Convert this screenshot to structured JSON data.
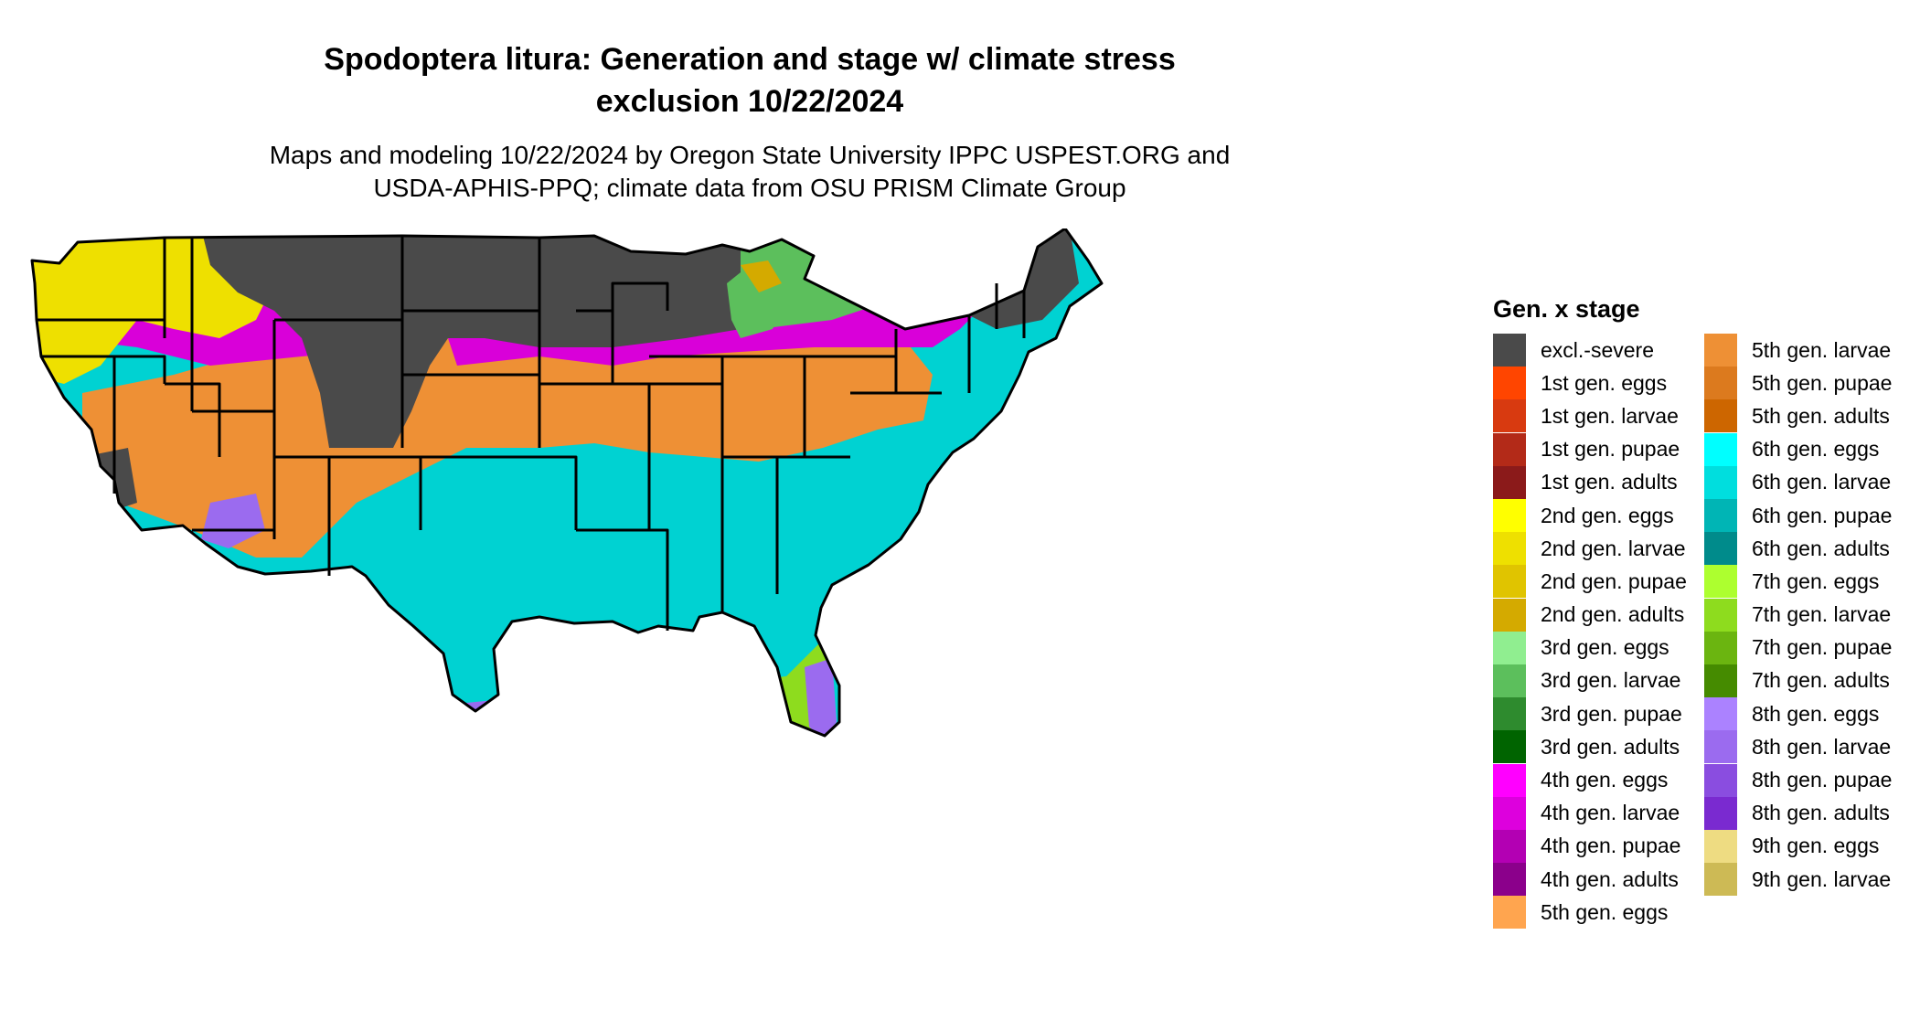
{
  "title_line1": "Spodoptera litura: Generation and stage w/ climate stress",
  "title_line2": "exclusion 10/22/2024",
  "subtitle_line1": "Maps and modeling 10/22/2024 by Oregon State University IPPC USPEST.ORG and",
  "subtitle_line2": "USDA-APHIS-PPQ; climate data from OSU PRISM Climate Group",
  "legend": {
    "title": "Gen. x stage",
    "items": [
      {
        "label": "excl.-severe",
        "color": "#4a4a4a"
      },
      {
        "label": "1st gen. eggs",
        "color": "#ff4500"
      },
      {
        "label": "1st gen. larvae",
        "color": "#d83a10"
      },
      {
        "label": "1st gen. pupae",
        "color": "#b32a18"
      },
      {
        "label": "1st gen. adults",
        "color": "#8b1a1a"
      },
      {
        "label": "2nd gen. eggs",
        "color": "#ffff00"
      },
      {
        "label": "2nd gen. larvae",
        "color": "#eee000"
      },
      {
        "label": "2nd gen. pupae",
        "color": "#e0c400"
      },
      {
        "label": "2nd gen. adults",
        "color": "#d4aa00"
      },
      {
        "label": "3rd gen. eggs",
        "color": "#90ee90"
      },
      {
        "label": "3rd gen. larvae",
        "color": "#5cbf5c"
      },
      {
        "label": "3rd gen. pupae",
        "color": "#2e8b2e"
      },
      {
        "label": "3rd gen. adults",
        "color": "#006400"
      },
      {
        "label": "4th gen. eggs",
        "color": "#ff00ff"
      },
      {
        "label": "4th gen. larvae",
        "color": "#dd00dd"
      },
      {
        "label": "4th gen. pupae",
        "color": "#b300b3"
      },
      {
        "label": "4th gen. adults",
        "color": "#8b008b"
      },
      {
        "label": "5th gen. eggs",
        "color": "#ffa54f"
      },
      {
        "label": "5th gen. larvae",
        "color": "#ee9035"
      },
      {
        "label": "5th gen. pupae",
        "color": "#dc7a1e"
      },
      {
        "label": "5th gen. adults",
        "color": "#cd6600"
      },
      {
        "label": "6th gen. eggs",
        "color": "#00ffff"
      },
      {
        "label": "6th gen. larvae",
        "color": "#00dede"
      },
      {
        "label": "6th gen. pupae",
        "color": "#00b5b5"
      },
      {
        "label": "6th gen. adults",
        "color": "#008b8b"
      },
      {
        "label": "7th gen. eggs",
        "color": "#adff2f"
      },
      {
        "label": "7th gen. larvae",
        "color": "#8edc1e"
      },
      {
        "label": "7th gen. pupae",
        "color": "#6bb510"
      },
      {
        "label": "7th gen. adults",
        "color": "#458b00"
      },
      {
        "label": "8th gen. eggs",
        "color": "#ab82ff"
      },
      {
        "label": "8th gen. larvae",
        "color": "#9b6bef"
      },
      {
        "label": "8th gen. pupae",
        "color": "#8a4de0"
      },
      {
        "label": "8th gen. adults",
        "color": "#7a2ad0"
      },
      {
        "label": "9th gen. eggs",
        "color": "#eedc82"
      },
      {
        "label": "9th gen. larvae",
        "color": "#cdba55"
      }
    ]
  }
}
